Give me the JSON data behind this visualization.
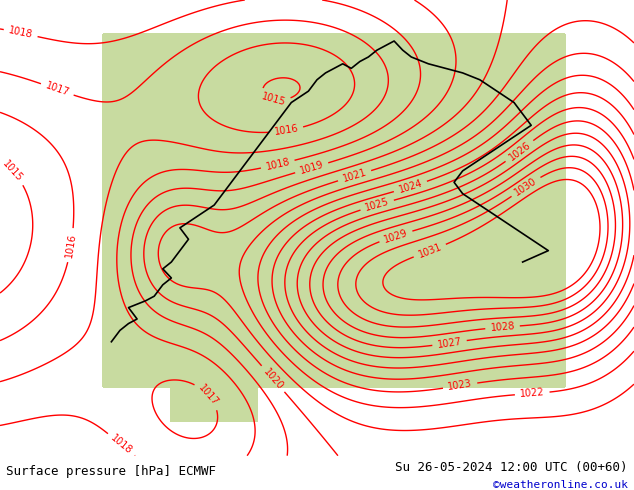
{
  "title_left": "Surface pressure [hPa] ECMWF",
  "title_right": "Su 26-05-2024 12:00 UTC (00+60)",
  "copyright": "©weatheronline.co.uk",
  "bg_color_ocean": "#e8e8e8",
  "bg_color_land": "#c8dba0",
  "contour_color": "#ff0000",
  "coast_color": "#000000",
  "label_color": "#ff0000",
  "footer_bg": "#ccffcc",
  "footer_text_color": "#000000",
  "copyright_color": "#0000cc",
  "figsize": [
    6.34,
    4.9
  ],
  "dpi": 100,
  "pressure_levels": [
    1016,
    1017,
    1018,
    1019,
    1020,
    1021,
    1022,
    1023,
    1024,
    1025,
    1026,
    1027,
    1028,
    1029,
    1030
  ],
  "contour_linewidth": 1.0,
  "label_fontsize": 7,
  "footer_fontsize": 9
}
